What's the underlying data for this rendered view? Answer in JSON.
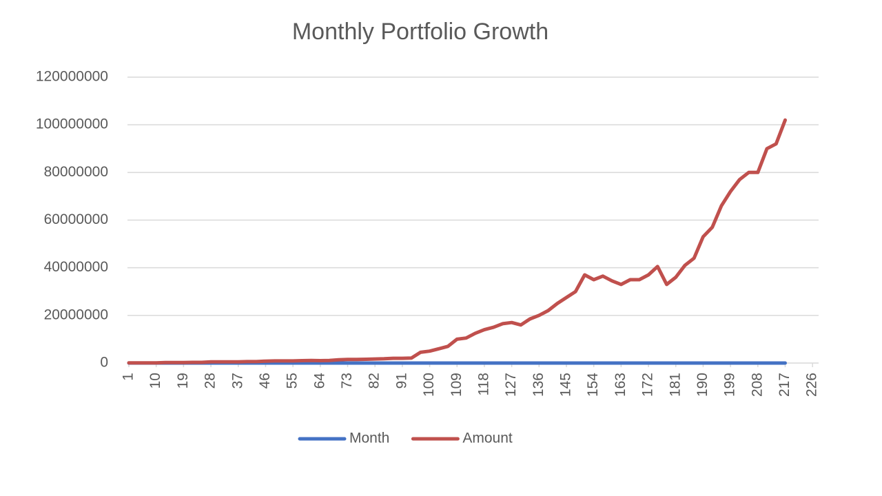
{
  "chart_data": {
    "type": "line",
    "title": "Monthly Portfolio Growth",
    "x": [
      1,
      4,
      7,
      10,
      13,
      16,
      19,
      22,
      25,
      28,
      31,
      34,
      37,
      40,
      43,
      46,
      49,
      52,
      55,
      58,
      61,
      64,
      67,
      70,
      73,
      76,
      79,
      82,
      85,
      88,
      91,
      94,
      97,
      100,
      103,
      106,
      109,
      112,
      115,
      118,
      121,
      124,
      127,
      130,
      133,
      136,
      139,
      142,
      145,
      148,
      151,
      154,
      157,
      160,
      163,
      166,
      169,
      172,
      175,
      178,
      181,
      184,
      187,
      190,
      193,
      196,
      199,
      202,
      205,
      208,
      211,
      214,
      217
    ],
    "series": [
      {
        "name": "Month",
        "color": "#4472c4",
        "values": [
          1,
          4,
          7,
          10,
          13,
          16,
          19,
          22,
          25,
          28,
          31,
          34,
          37,
          40,
          43,
          46,
          49,
          52,
          55,
          58,
          61,
          64,
          67,
          70,
          73,
          76,
          79,
          82,
          85,
          88,
          91,
          94,
          97,
          100,
          103,
          106,
          109,
          112,
          115,
          118,
          121,
          124,
          127,
          130,
          133,
          136,
          139,
          142,
          145,
          148,
          151,
          154,
          157,
          160,
          163,
          166,
          169,
          172,
          175,
          178,
          181,
          184,
          187,
          190,
          193,
          196,
          199,
          202,
          205,
          208,
          211,
          214,
          217
        ]
      },
      {
        "name": "Amount",
        "color": "#c0504d",
        "values": [
          100000,
          100000,
          100000,
          100000,
          200000,
          200000,
          200000,
          300000,
          300000,
          500000,
          500000,
          500000,
          500000,
          600000,
          600000,
          800000,
          900000,
          900000,
          900000,
          1000000,
          1100000,
          1000000,
          1100000,
          1400000,
          1500000,
          1500000,
          1600000,
          1700000,
          1800000,
          2000000,
          2000000,
          2100000,
          4500000,
          5000000,
          6000000,
          7000000,
          10000000,
          10500000,
          12500000,
          14000000,
          15000000,
          16500000,
          17000000,
          16000000,
          18500000,
          20000000,
          22000000,
          25000000,
          27500000,
          30000000,
          37000000,
          35000000,
          36500000,
          34500000,
          33000000,
          35000000,
          35000000,
          37000000,
          40500000,
          33000000,
          36000000,
          41000000,
          44000000,
          53000000,
          57000000,
          66000000,
          72000000,
          77000000,
          80000000,
          80000000,
          90000000,
          92000000,
          102000000
        ]
      }
    ],
    "xlim": [
      1,
      228
    ],
    "xticks": [
      1,
      10,
      19,
      28,
      37,
      46,
      55,
      64,
      73,
      82,
      91,
      100,
      109,
      118,
      127,
      136,
      145,
      154,
      163,
      172,
      181,
      190,
      199,
      208,
      217,
      226
    ],
    "ylim": [
      0,
      120000000
    ],
    "yticks": [
      0,
      20000000,
      40000000,
      60000000,
      80000000,
      100000000,
      120000000
    ],
    "grid": true
  }
}
